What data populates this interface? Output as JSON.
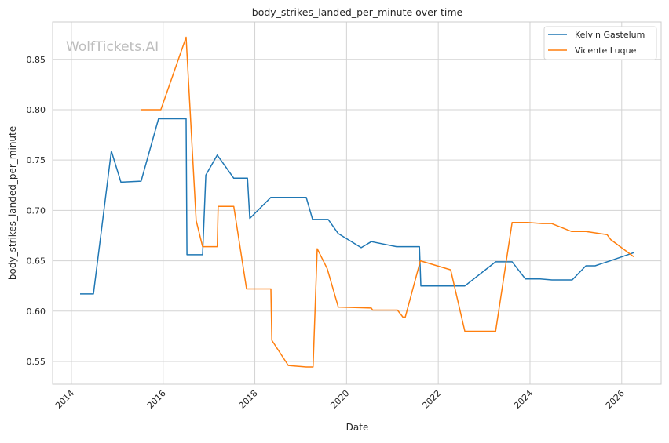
{
  "chart_data": {
    "type": "line",
    "title": "body_strikes_landed_per_minute over time",
    "xlabel": "Date",
    "ylabel": "body_strikes_landed_per_minute",
    "xlim": [
      2013.59,
      2026.86
    ],
    "ylim": [
      0.5274,
      0.8872
    ],
    "x_ticks": [
      2014,
      2016,
      2018,
      2020,
      2022,
      2024,
      2026
    ],
    "x_tick_labels": [
      "2014",
      "2016",
      "2018",
      "2020",
      "2022",
      "2024",
      "2026"
    ],
    "y_ticks": [
      0.55,
      0.6,
      0.65,
      0.7,
      0.75,
      0.8,
      0.85
    ],
    "y_tick_labels": [
      "0.55",
      "0.60",
      "0.65",
      "0.70",
      "0.75",
      "0.80",
      "0.85"
    ],
    "grid": true,
    "legend_position": "top-right",
    "watermark": "WolfTickets.AI",
    "series": [
      {
        "name": "Kelvin Gastelum",
        "color": "#1f77b4",
        "x": [
          2014.19,
          2014.48,
          2014.87,
          2015.08,
          2015.52,
          2015.9,
          2016.5,
          2016.52,
          2016.86,
          2016.93,
          2017.18,
          2017.54,
          2017.84,
          2017.89,
          2018.35,
          2019.12,
          2019.26,
          2019.6,
          2019.82,
          2020.32,
          2020.54,
          2021.09,
          2021.59,
          2021.62,
          2022.58,
          2023.25,
          2023.61,
          2023.9,
          2024.22,
          2024.48,
          2024.92,
          2025.22,
          2025.42,
          2025.68,
          2025.75,
          2026.26
        ],
        "y": [
          0.617,
          0.617,
          0.759,
          0.728,
          0.729,
          0.791,
          0.791,
          0.656,
          0.656,
          0.735,
          0.755,
          0.732,
          0.732,
          0.692,
          0.713,
          0.713,
          0.691,
          0.691,
          0.677,
          0.663,
          0.669,
          0.664,
          0.664,
          0.625,
          0.625,
          0.649,
          0.649,
          0.632,
          0.632,
          0.631,
          0.631,
          0.645,
          0.645,
          0.649,
          0.65,
          0.658
        ]
      },
      {
        "name": "Vicente Luque",
        "color": "#ff7f0e",
        "x": [
          2015.52,
          2015.95,
          2016.5,
          2016.72,
          2016.86,
          2017.18,
          2017.2,
          2017.54,
          2017.82,
          2018.35,
          2018.37,
          2018.73,
          2019.12,
          2019.27,
          2019.36,
          2019.58,
          2019.82,
          2020.54,
          2020.57,
          2021.11,
          2021.23,
          2021.28,
          2021.61,
          2022.27,
          2022.58,
          2023.25,
          2023.61,
          2023.95,
          2024.26,
          2024.47,
          2024.91,
          2025.22,
          2025.68,
          2025.76,
          2026.26
        ],
        "y": [
          0.8,
          0.8,
          0.872,
          0.69,
          0.664,
          0.664,
          0.704,
          0.704,
          0.622,
          0.622,
          0.571,
          0.546,
          0.5445,
          0.5445,
          0.662,
          0.642,
          0.604,
          0.603,
          0.601,
          0.601,
          0.594,
          0.594,
          0.65,
          0.641,
          0.58,
          0.58,
          0.688,
          0.688,
          0.687,
          0.687,
          0.679,
          0.679,
          0.676,
          0.671,
          0.654
        ]
      }
    ]
  }
}
